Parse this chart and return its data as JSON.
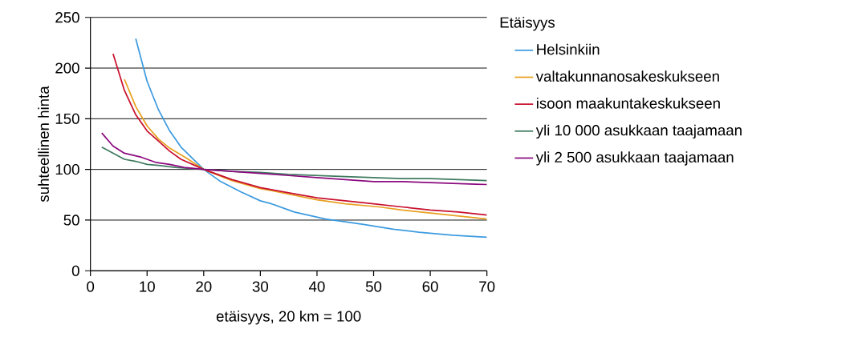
{
  "chart_data": {
    "type": "line",
    "xlabel": "etäisyys, 20 km = 100",
    "ylabel": "suhteellinen hinta",
    "legend_title": "Etäisyys",
    "xlim": [
      0,
      70
    ],
    "ylim": [
      0,
      250
    ],
    "xticks": [
      0,
      10,
      20,
      30,
      40,
      50,
      60,
      70
    ],
    "yticks": [
      0,
      50,
      100,
      150,
      200,
      250
    ],
    "grid": "y",
    "legend": "right",
    "marker": "none",
    "line_style": "solid",
    "series": [
      {
        "name": "Helsinkiin",
        "color": "#3d9be0",
        "x": [
          8,
          10,
          12,
          14,
          16,
          18,
          20,
          23,
          26.5,
          30,
          32,
          36,
          41.5,
          48,
          53.5,
          58,
          64,
          70
        ],
        "values": [
          229,
          187,
          159,
          138,
          122,
          111,
          100,
          88,
          78,
          69,
          66,
          58,
          51,
          46,
          41,
          38,
          35,
          33
        ]
      },
      {
        "name": "valtakunnanosakeskukseen",
        "color": "#e8a020",
        "x": [
          6,
          8,
          10,
          12,
          14,
          17,
          20,
          25,
          30,
          32,
          40,
          45,
          51,
          55,
          60,
          65,
          70
        ],
        "values": [
          189,
          162,
          143,
          130,
          121,
          111,
          100,
          89,
          81,
          79,
          70,
          66,
          63,
          60,
          57,
          54,
          51
        ]
      },
      {
        "name": "isoon maakuntakeskukseen",
        "color": "#c8102e",
        "x": [
          4,
          6,
          8,
          10,
          12,
          14,
          16,
          18,
          20,
          25,
          30,
          35,
          40,
          45,
          50,
          55,
          60,
          65,
          70
        ],
        "values": [
          214,
          178,
          154,
          138,
          128,
          118,
          110,
          105,
          100,
          90,
          82,
          77,
          72,
          69,
          66,
          63,
          60,
          58,
          55
        ]
      },
      {
        "name": "yli 10 000 asukkaan taajamaan",
        "color": "#3f7a60",
        "x": [
          2,
          4,
          6,
          8,
          10,
          12,
          15,
          20,
          25,
          30,
          35,
          40,
          45,
          50,
          55,
          60,
          65,
          70
        ],
        "values": [
          122,
          116,
          110,
          108,
          105,
          104,
          102,
          100,
          98,
          97,
          95,
          94,
          93,
          92,
          91,
          91,
          90,
          89
        ]
      },
      {
        "name": "yli 2 500 asukkaan taajamaan",
        "color": "#8b0a7f",
        "x": [
          2,
          4,
          6,
          9,
          11.5,
          14,
          16.5,
          20,
          25,
          30,
          35,
          40,
          45,
          50,
          55,
          60,
          65,
          70
        ],
        "values": [
          136,
          123,
          116,
          112,
          107,
          105,
          102,
          100,
          98,
          96,
          94,
          92,
          90,
          88,
          88,
          87,
          86,
          85
        ]
      }
    ]
  }
}
